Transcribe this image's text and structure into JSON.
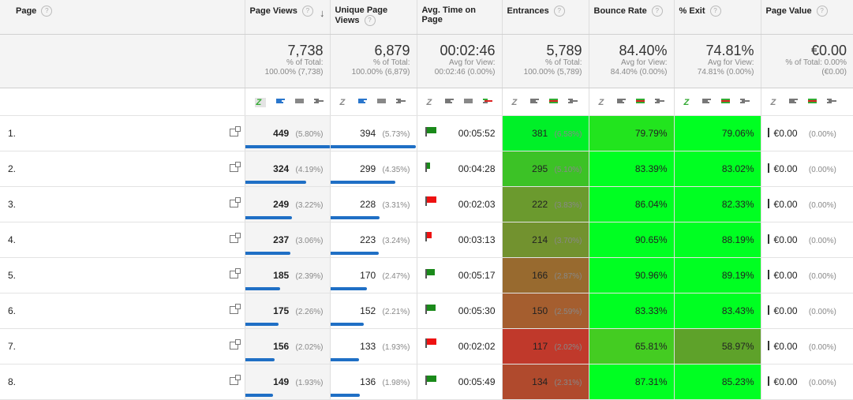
{
  "headers": {
    "page": "Page",
    "page_views": "Page Views",
    "unique": "Unique Page Views",
    "avg_time": "Avg. Time on Page",
    "entrances": "Entrances",
    "bounce": "Bounce Rate",
    "exit": "% Exit",
    "value": "Page Value",
    "help": "?",
    "sort_arrow": "↓",
    "z": "Z"
  },
  "summary": {
    "page_views": {
      "big": "7,738",
      "l1": "% of Total:",
      "l2": "100.00% (7,738)"
    },
    "unique": {
      "big": "6,879",
      "l1": "% of Total:",
      "l2": "100.00% (6,879)"
    },
    "avg_time": {
      "big": "00:02:46",
      "l1": "Avg for View:",
      "l2": "00:02:46 (0.00%)"
    },
    "entrances": {
      "big": "5,789",
      "l1": "% of Total:",
      "l2": "100.00% (5,789)"
    },
    "bounce": {
      "big": "84.40%",
      "l1": "Avg for View:",
      "l2": "84.40% (0.00%)"
    },
    "exit": {
      "big": "74.81%",
      "l1": "Avg for View:",
      "l2": "74.81% (0.00%)"
    },
    "value": {
      "big": "€0.00",
      "l1": "% of Total: 0.00%",
      "l2": "(€0.00)"
    }
  },
  "colors": {
    "green": "#00ff22",
    "red": "#c0392b",
    "blue": "#1f6fc5",
    "flag_green": "#1a8a1a",
    "flag_red": "#ee1111"
  },
  "rows": [
    {
      "idx": "1.",
      "pv": "449",
      "pv_pct": "(5.80%)",
      "pv_frac": 1.0,
      "uv": "394",
      "uv_pct": "(5.73%)",
      "uv_frac": 1.0,
      "time": "00:05:52",
      "flag": "green",
      "flag_size": 1.0,
      "ent": "381",
      "ent_pct": "(6.58%)",
      "ent_bg": "#00f028",
      "br": "79.79%",
      "br_bg": "#22e41e",
      "ex": "79.06%",
      "ex_bg": "#00ff22",
      "val": "€0.00",
      "val_pct": "(0.00%)"
    },
    {
      "idx": "2.",
      "pv": "324",
      "pv_pct": "(4.19%)",
      "pv_frac": 0.72,
      "uv": "299",
      "uv_pct": "(4.35%)",
      "uv_frac": 0.76,
      "time": "00:04:28",
      "flag": "green",
      "flag_size": 0.35,
      "ent": "295",
      "ent_pct": "(5.10%)",
      "ent_bg": "#3cc226",
      "br": "83.39%",
      "br_bg": "#00ff22",
      "ex": "83.02%",
      "ex_bg": "#00ff22",
      "val": "€0.00",
      "val_pct": "(0.00%)"
    },
    {
      "idx": "3.",
      "pv": "249",
      "pv_pct": "(3.22%)",
      "pv_frac": 0.55,
      "uv": "228",
      "uv_pct": "(3.31%)",
      "uv_frac": 0.58,
      "time": "00:02:03",
      "flag": "red",
      "flag_size": 1.0,
      "ent": "222",
      "ent_pct": "(3.83%)",
      "ent_bg": "#6b9a2e",
      "br": "86.04%",
      "br_bg": "#00ff22",
      "ex": "82.33%",
      "ex_bg": "#00ff22",
      "val": "€0.00",
      "val_pct": "(0.00%)"
    },
    {
      "idx": "4.",
      "pv": "237",
      "pv_pct": "(3.06%)",
      "pv_frac": 0.53,
      "uv": "223",
      "uv_pct": "(3.24%)",
      "uv_frac": 0.57,
      "time": "00:03:13",
      "flag": "red",
      "flag_size": 0.55,
      "ent": "214",
      "ent_pct": "(3.70%)",
      "ent_bg": "#72922f",
      "br": "90.65%",
      "br_bg": "#00ff22",
      "ex": "88.19%",
      "ex_bg": "#00ff22",
      "val": "€0.00",
      "val_pct": "(0.00%)"
    },
    {
      "idx": "5.",
      "pv": "185",
      "pv_pct": "(2.39%)",
      "pv_frac": 0.41,
      "uv": "170",
      "uv_pct": "(2.47%)",
      "uv_frac": 0.43,
      "time": "00:05:17",
      "flag": "green",
      "flag_size": 0.9,
      "ent": "166",
      "ent_pct": "(2.87%)",
      "ent_bg": "#986a2f",
      "br": "90.96%",
      "br_bg": "#00ff22",
      "ex": "89.19%",
      "ex_bg": "#00ff22",
      "val": "€0.00",
      "val_pct": "(0.00%)"
    },
    {
      "idx": "6.",
      "pv": "175",
      "pv_pct": "(2.26%)",
      "pv_frac": 0.39,
      "uv": "152",
      "uv_pct": "(2.21%)",
      "uv_frac": 0.39,
      "time": "00:05:30",
      "flag": "green",
      "flag_size": 0.95,
      "ent": "150",
      "ent_pct": "(2.59%)",
      "ent_bg": "#a55e2f",
      "br": "83.33%",
      "br_bg": "#00ff22",
      "ex": "83.43%",
      "ex_bg": "#00ff22",
      "val": "€0.00",
      "val_pct": "(0.00%)"
    },
    {
      "idx": "7.",
      "pv": "156",
      "pv_pct": "(2.02%)",
      "pv_frac": 0.35,
      "uv": "133",
      "uv_pct": "(1.93%)",
      "uv_frac": 0.34,
      "time": "00:02:02",
      "flag": "red",
      "flag_size": 1.0,
      "ent": "117",
      "ent_pct": "(2.02%)",
      "ent_bg": "#c0392b",
      "br": "65.81%",
      "br_bg": "#44cc22",
      "ex": "58.97%",
      "ex_bg": "#5ea22a",
      "val": "€0.00",
      "val_pct": "(0.00%)"
    },
    {
      "idx": "8.",
      "pv": "149",
      "pv_pct": "(1.93%)",
      "pv_frac": 0.33,
      "uv": "136",
      "uv_pct": "(1.98%)",
      "uv_frac": 0.35,
      "time": "00:05:49",
      "flag": "green",
      "flag_size": 1.0,
      "ent": "134",
      "ent_pct": "(2.31%)",
      "ent_bg": "#b04a2d",
      "br": "87.31%",
      "br_bg": "#00ff22",
      "ex": "85.23%",
      "ex_bg": "#00ff22",
      "val": "€0.00",
      "val_pct": "(0.00%)"
    }
  ]
}
